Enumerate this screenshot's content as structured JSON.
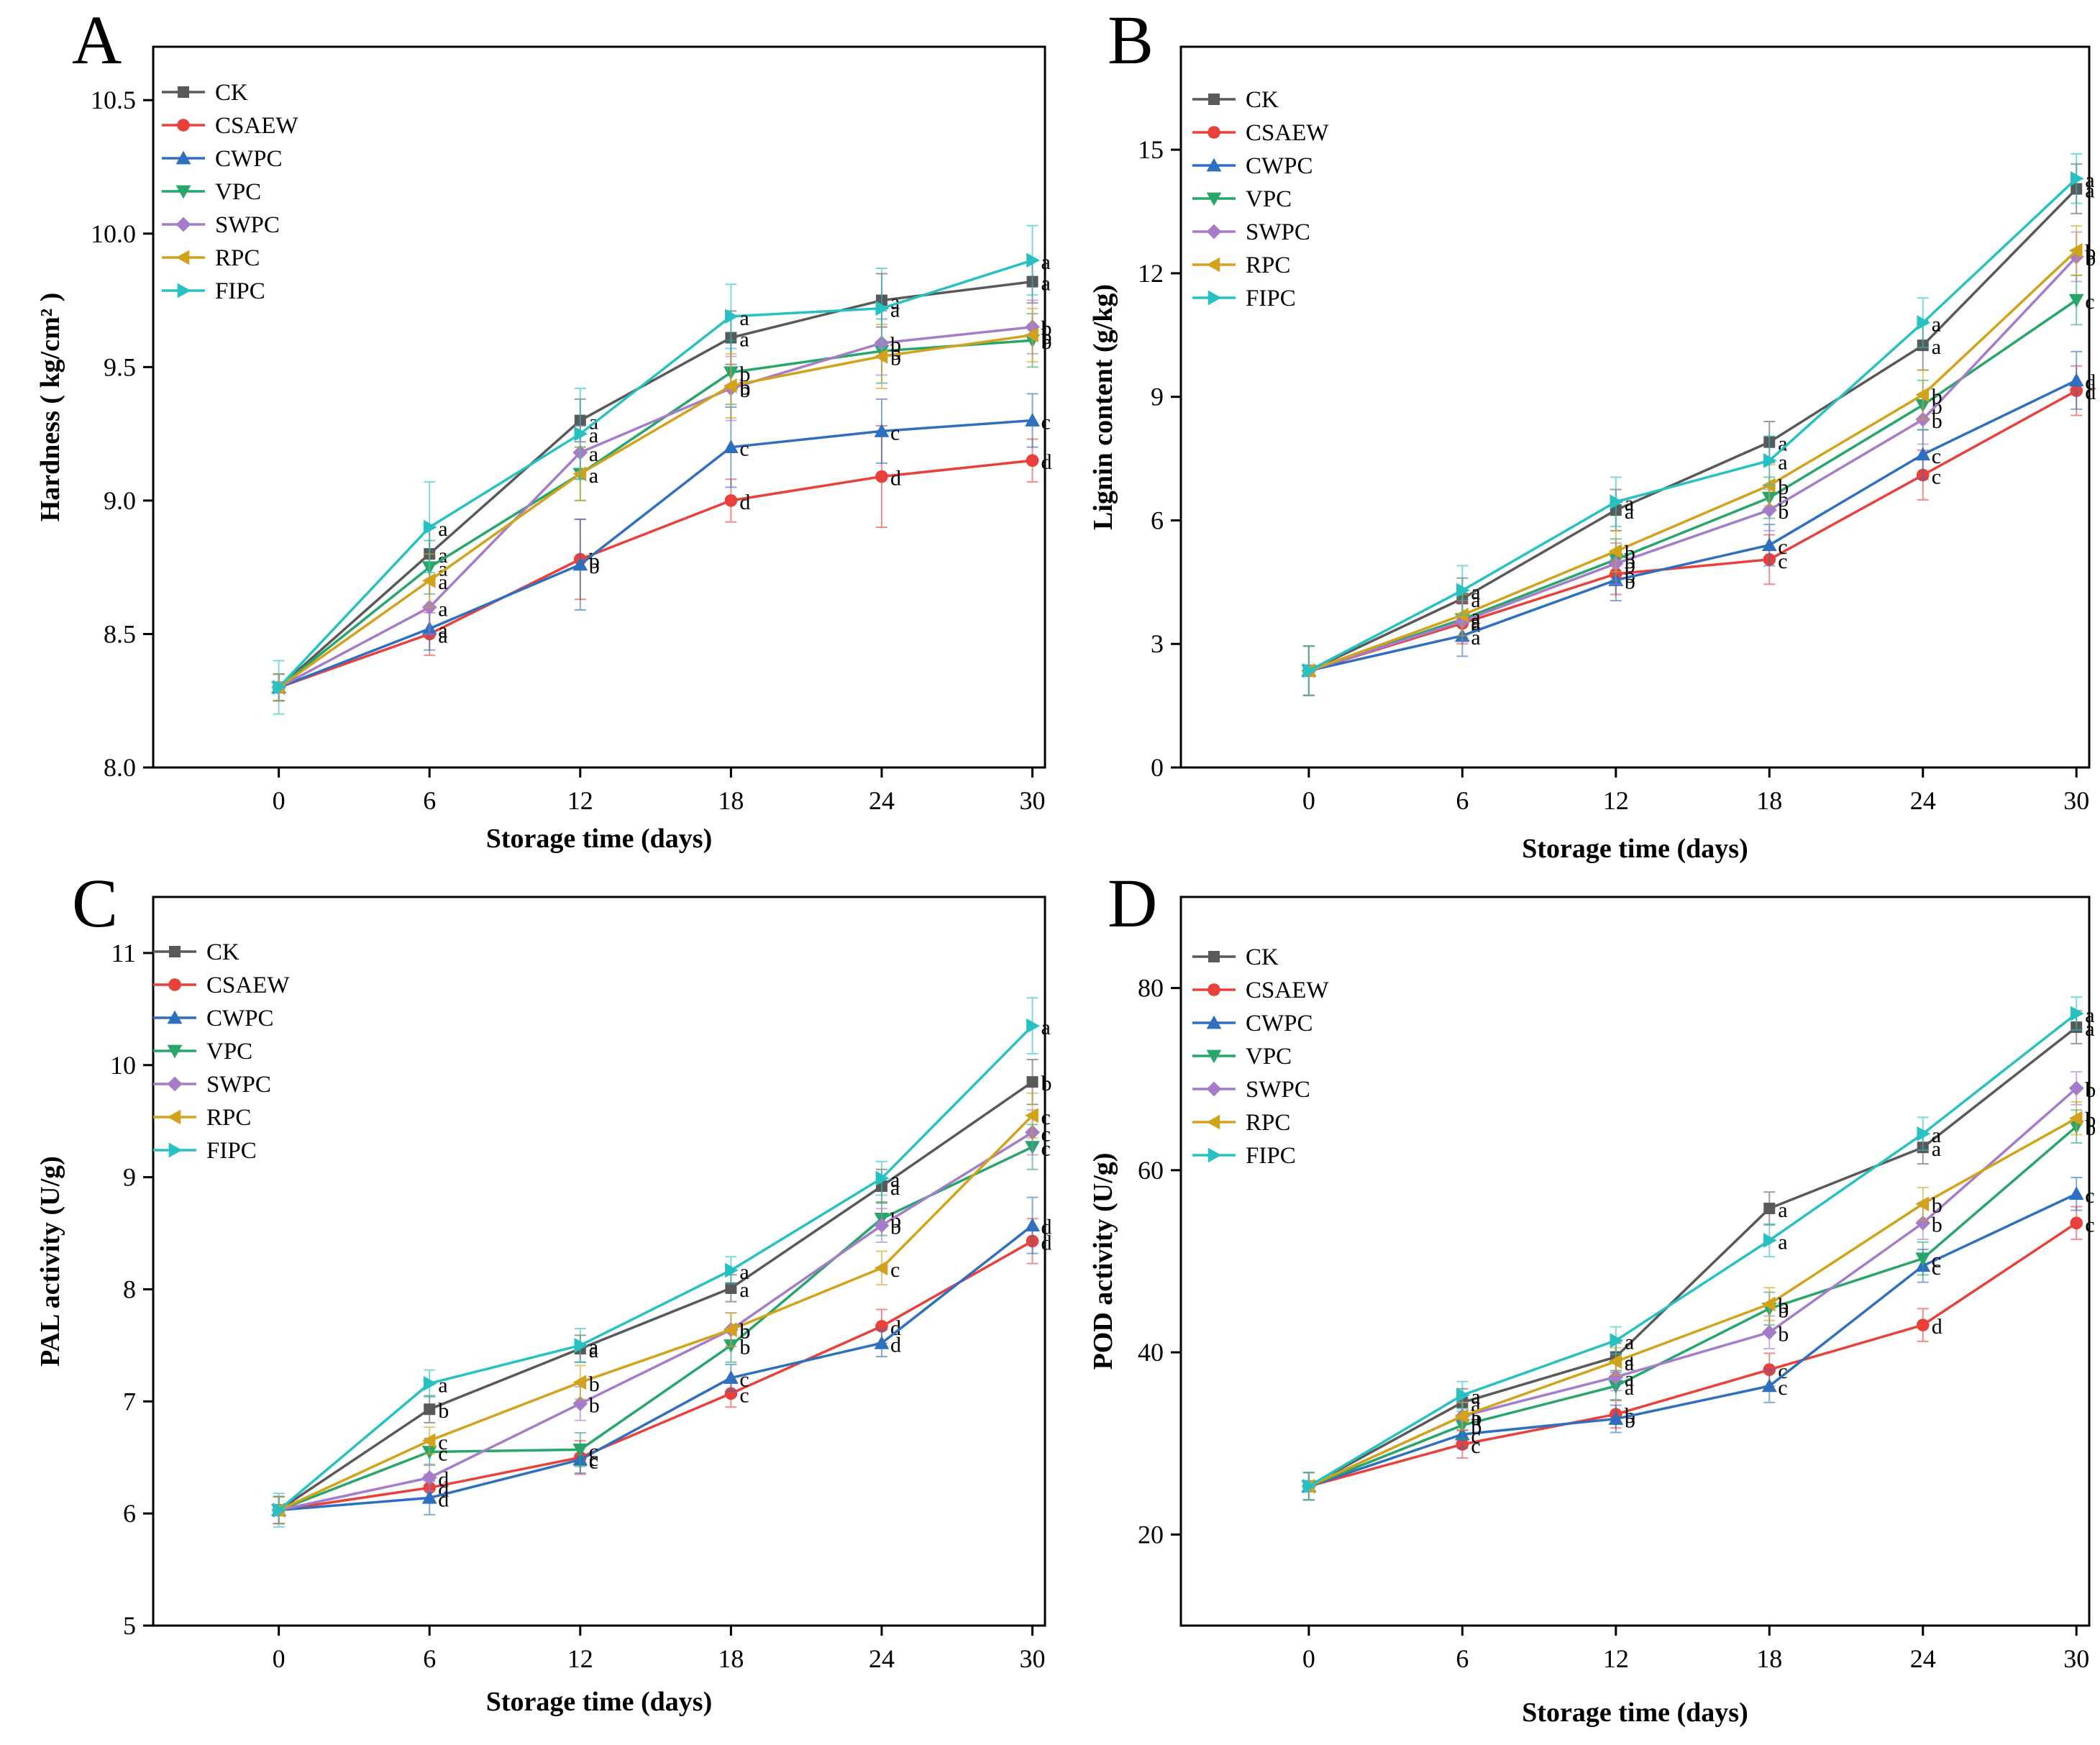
{
  "figure": {
    "series_colors": {
      "CK": "#595959",
      "CSAEW": "#e8413c",
      "CWPC": "#2f6fc0",
      "VPC": "#26a66a",
      "SWPC": "#a57cc9",
      "RPC": "#d1a21c",
      "FIPC": "#28c1c1"
    },
    "series_markers": {
      "CK": "square",
      "CSAEW": "circle",
      "CWPC": "triangle-up",
      "VPC": "triangle-down",
      "SWPC": "diamond",
      "RPC": "triangle-left",
      "FIPC": "triangle-right"
    }
  },
  "chart_data": [
    {
      "panel": "A",
      "type": "line",
      "xlabel": "Storage time (days)",
      "ylabel": "Hardness ( kg/cm² )",
      "x": [
        0,
        6,
        12,
        18,
        24,
        30
      ],
      "xticks": [
        "0",
        "6",
        "12",
        "18",
        "24",
        "30"
      ],
      "xlim": [
        -5,
        30.5
      ],
      "ylim": [
        8.0,
        10.7
      ],
      "yticks": [
        "8.0",
        "8.5",
        "9.0",
        "9.5",
        "10.0",
        "10.5"
      ],
      "ytick_values": [
        8.0,
        8.5,
        9.0,
        9.5,
        10.0,
        10.5
      ],
      "legend": "top-left",
      "series": [
        {
          "name": "CK",
          "values": [
            8.3,
            8.8,
            9.3,
            9.61,
            9.75,
            9.82
          ],
          "errors": [
            0.05,
            0.1,
            0.08,
            0.1,
            0.1,
            0.08
          ],
          "sig": [
            "",
            "a",
            "a",
            "a",
            "a",
            "a"
          ]
        },
        {
          "name": "CSAEW",
          "values": [
            8.3,
            8.5,
            8.78,
            9.0,
            9.09,
            9.15
          ],
          "errors": [
            0.05,
            0.08,
            0.15,
            0.08,
            0.19,
            0.08
          ],
          "sig": [
            "",
            "a",
            "b",
            "d",
            "d",
            "d"
          ]
        },
        {
          "name": "CWPC",
          "values": [
            8.3,
            8.52,
            8.76,
            9.2,
            9.26,
            9.3
          ],
          "errors": [
            0.05,
            0.08,
            0.17,
            0.15,
            0.12,
            0.1
          ],
          "sig": [
            "",
            "a",
            "b",
            "c",
            "c",
            "c"
          ]
        },
        {
          "name": "VPC",
          "values": [
            8.3,
            8.75,
            9.1,
            9.48,
            9.56,
            9.6
          ],
          "errors": [
            0.05,
            0.1,
            0.1,
            0.12,
            0.12,
            0.1
          ],
          "sig": [
            "",
            "a",
            "a",
            "b",
            "b",
            "b"
          ]
        },
        {
          "name": "SWPC",
          "values": [
            8.3,
            8.6,
            9.18,
            9.42,
            9.59,
            9.65
          ],
          "errors": [
            0.05,
            0.1,
            0.1,
            0.12,
            0.12,
            0.1
          ],
          "sig": [
            "",
            "a",
            "a",
            "b",
            "b",
            "b"
          ]
        },
        {
          "name": "RPC",
          "values": [
            8.3,
            8.7,
            9.1,
            9.43,
            9.54,
            9.62
          ],
          "errors": [
            0.05,
            0.1,
            0.1,
            0.12,
            0.12,
            0.1
          ],
          "sig": [
            "",
            "a",
            "a",
            "b",
            "b",
            "b"
          ]
        },
        {
          "name": "FIPC",
          "values": [
            8.3,
            8.9,
            9.25,
            9.69,
            9.72,
            9.9
          ],
          "errors": [
            0.1,
            0.17,
            0.17,
            0.12,
            0.15,
            0.13
          ],
          "sig": [
            "",
            "a",
            "a",
            "a",
            "a",
            "a"
          ]
        }
      ]
    },
    {
      "panel": "B",
      "type": "line",
      "xlabel": "Storage time (days)",
      "ylabel": "Lignin content (g/kg)",
      "x": [
        0,
        6,
        12,
        18,
        24,
        30
      ],
      "xticks": [
        "0",
        "6",
        "12",
        "18",
        "24",
        "30"
      ],
      "xlim": [
        -5,
        30.5
      ],
      "ylim": [
        0,
        17.5
      ],
      "yticks": [
        "0",
        "3",
        "6",
        "9",
        "12",
        "15"
      ],
      "ytick_values": [
        0,
        3,
        6,
        9,
        12,
        15
      ],
      "legend": "top-left",
      "series": [
        {
          "name": "CK",
          "values": [
            2.35,
            4.1,
            6.25,
            7.9,
            10.25,
            14.05
          ],
          "errors": [
            0.6,
            0.5,
            0.5,
            0.5,
            0.6,
            0.6
          ],
          "sig": [
            "",
            "a",
            "a",
            "a",
            "a",
            "a"
          ]
        },
        {
          "name": "CSAEW",
          "values": [
            2.35,
            3.5,
            4.7,
            5.05,
            7.1,
            9.15
          ],
          "errors": [
            0.6,
            0.5,
            0.5,
            0.6,
            0.6,
            0.6
          ],
          "sig": [
            "",
            "a",
            "b",
            "c",
            "c",
            "d"
          ]
        },
        {
          "name": "CWPC",
          "values": [
            2.35,
            3.2,
            4.55,
            5.4,
            7.6,
            9.4
          ],
          "errors": [
            0.6,
            0.5,
            0.5,
            0.5,
            0.6,
            0.7
          ],
          "sig": [
            "",
            "a",
            "b",
            "c",
            "c",
            "d"
          ]
        },
        {
          "name": "VPC",
          "values": [
            2.35,
            3.6,
            5.05,
            6.55,
            8.8,
            11.35
          ],
          "errors": [
            0.6,
            0.5,
            0.5,
            0.5,
            0.6,
            0.6
          ],
          "sig": [
            "",
            "a",
            "b",
            "b",
            "b",
            "c"
          ]
        },
        {
          "name": "SWPC",
          "values": [
            2.35,
            3.55,
            4.95,
            6.25,
            8.45,
            12.4
          ],
          "errors": [
            0.6,
            0.5,
            0.5,
            0.5,
            0.6,
            0.6
          ],
          "sig": [
            "",
            "a",
            "b",
            "b",
            "b",
            "b"
          ]
        },
        {
          "name": "RPC",
          "values": [
            2.35,
            3.7,
            5.25,
            6.85,
            9.05,
            12.55
          ],
          "errors": [
            0.6,
            0.5,
            0.5,
            0.5,
            0.6,
            0.6
          ],
          "sig": [
            "",
            "a",
            "b",
            "b",
            "b",
            "b"
          ]
        },
        {
          "name": "FIPC",
          "values": [
            2.35,
            4.3,
            6.45,
            7.45,
            10.8,
            14.3
          ],
          "errors": [
            0.6,
            0.6,
            0.6,
            0.6,
            0.6,
            0.6
          ],
          "sig": [
            "",
            "a",
            "a",
            "a",
            "a",
            "a"
          ]
        }
      ]
    },
    {
      "panel": "C",
      "type": "line",
      "xlabel": "Storage time (days)",
      "ylabel": "PAL activity  (U/g)",
      "x": [
        0,
        6,
        12,
        18,
        24,
        30
      ],
      "xticks": [
        "0",
        "6",
        "12",
        "18",
        "24",
        "30"
      ],
      "xlim": [
        -5,
        30.5
      ],
      "ylim": [
        5,
        11.5
      ],
      "yticks": [
        "5",
        "6",
        "7",
        "8",
        "9",
        "10",
        "11"
      ],
      "ytick_values": [
        5,
        6,
        7,
        8,
        9,
        10,
        11
      ],
      "legend": "top-left",
      "series": [
        {
          "name": "CK",
          "values": [
            6.03,
            6.93,
            7.47,
            8.01,
            8.92,
            9.85
          ],
          "errors": [
            0.12,
            0.12,
            0.12,
            0.12,
            0.15,
            0.2
          ],
          "sig": [
            "",
            "b",
            "a",
            "a",
            "a",
            "b"
          ]
        },
        {
          "name": "CSAEW",
          "values": [
            6.03,
            6.23,
            6.5,
            7.07,
            7.67,
            8.43
          ],
          "errors": [
            0.12,
            0.12,
            0.15,
            0.12,
            0.15,
            0.2
          ],
          "sig": [
            "",
            "d",
            "c",
            "c",
            "d",
            "d"
          ]
        },
        {
          "name": "CWPC",
          "values": [
            6.03,
            6.14,
            6.48,
            7.21,
            7.52,
            8.57
          ],
          "errors": [
            0.12,
            0.15,
            0.12,
            0.12,
            0.12,
            0.25
          ],
          "sig": [
            "",
            "d",
            "c",
            "c",
            "d",
            "d"
          ]
        },
        {
          "name": "VPC",
          "values": [
            6.03,
            6.55,
            6.57,
            7.5,
            8.63,
            9.27
          ],
          "errors": [
            0.12,
            0.12,
            0.15,
            0.15,
            0.15,
            0.2
          ],
          "sig": [
            "",
            "c",
            "c",
            "b",
            "b",
            "c"
          ]
        },
        {
          "name": "SWPC",
          "values": [
            6.03,
            6.32,
            6.98,
            7.64,
            8.57,
            9.4
          ],
          "errors": [
            0.12,
            0.12,
            0.15,
            0.15,
            0.15,
            0.2
          ],
          "sig": [
            "",
            "d",
            "b",
            "b",
            "b",
            "c"
          ]
        },
        {
          "name": "RPC",
          "values": [
            6.03,
            6.65,
            7.17,
            7.64,
            8.19,
            9.55
          ],
          "errors": [
            0.12,
            0.12,
            0.15,
            0.15,
            0.15,
            0.2
          ],
          "sig": [
            "",
            "c",
            "b",
            "b",
            "c",
            "c"
          ]
        },
        {
          "name": "FIPC",
          "values": [
            6.03,
            7.16,
            7.5,
            8.17,
            8.99,
            10.35
          ],
          "errors": [
            0.15,
            0.12,
            0.15,
            0.12,
            0.15,
            0.25
          ],
          "sig": [
            "",
            "a",
            "a",
            "a",
            "a",
            "a"
          ]
        }
      ]
    },
    {
      "panel": "D",
      "type": "line",
      "xlabel": "Storage time (days)",
      "ylabel": "POD activity  (U/g)",
      "x": [
        0,
        6,
        12,
        18,
        24,
        30
      ],
      "xticks": [
        "0",
        "6",
        "12",
        "18",
        "24",
        "30"
      ],
      "xlim": [
        -5,
        30.5
      ],
      "ylim": [
        10,
        90
      ],
      "yticks": [
        "20",
        "40",
        "60",
        "80"
      ],
      "ytick_values": [
        20,
        40,
        60,
        80
      ],
      "legend": "top-left",
      "series": [
        {
          "name": "CK",
          "values": [
            25.3,
            34.5,
            39.5,
            55.8,
            62.5,
            75.7
          ],
          "errors": [
            1.5,
            1.5,
            1.5,
            1.8,
            1.8,
            1.8
          ],
          "sig": [
            "",
            "a",
            "a",
            "a",
            "a",
            "a"
          ]
        },
        {
          "name": "CSAEW",
          "values": [
            25.3,
            29.9,
            33.2,
            38.1,
            43.0,
            54.2
          ],
          "errors": [
            1.5,
            1.5,
            1.5,
            1.8,
            1.8,
            1.8
          ],
          "sig": [
            "",
            "c",
            "b",
            "c",
            "d",
            "c"
          ]
        },
        {
          "name": "CWPC",
          "values": [
            25.3,
            31.0,
            32.7,
            36.3,
            49.5,
            57.4
          ],
          "errors": [
            1.5,
            1.5,
            1.5,
            1.8,
            1.8,
            1.8
          ],
          "sig": [
            "",
            "c",
            "b",
            "c",
            "c",
            "c"
          ]
        },
        {
          "name": "VPC",
          "values": [
            25.3,
            32.0,
            36.3,
            44.8,
            50.3,
            64.8
          ],
          "errors": [
            1.5,
            1.5,
            1.5,
            1.8,
            1.8,
            1.8
          ],
          "sig": [
            "",
            "b",
            "a",
            "b",
            "c",
            "b"
          ]
        },
        {
          "name": "SWPC",
          "values": [
            25.3,
            33.0,
            37.3,
            42.2,
            54.2,
            69.0
          ],
          "errors": [
            1.5,
            1.5,
            1.5,
            1.8,
            1.8,
            1.8
          ],
          "sig": [
            "",
            "b",
            "a",
            "b",
            "b",
            "b"
          ]
        },
        {
          "name": "RPC",
          "values": [
            25.3,
            33.0,
            39.0,
            45.3,
            56.3,
            65.7
          ],
          "errors": [
            1.5,
            1.5,
            1.5,
            1.8,
            1.8,
            1.8
          ],
          "sig": [
            "",
            "a",
            "a",
            "b",
            "b",
            "b"
          ]
        },
        {
          "name": "FIPC",
          "values": [
            25.3,
            35.3,
            41.3,
            52.3,
            64.0,
            77.2
          ],
          "errors": [
            1.5,
            1.5,
            1.5,
            1.8,
            1.8,
            1.8
          ],
          "sig": [
            "",
            "a",
            "a",
            "a",
            "a",
            "a"
          ]
        }
      ]
    }
  ]
}
